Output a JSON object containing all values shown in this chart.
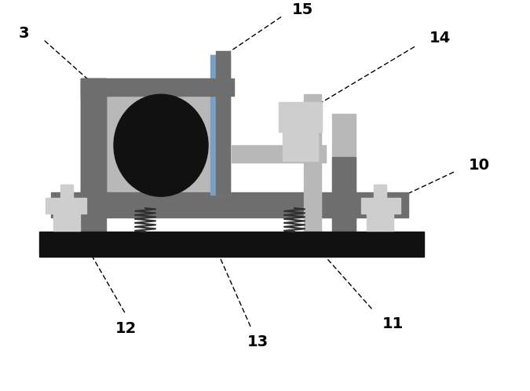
{
  "bg_color": "#ffffff",
  "gray_dark": "#6e6e6e",
  "gray_medium": "#909090",
  "gray_light": "#b8b8b8",
  "gray_lighter": "#cecece",
  "blue_color": "#7a9fc0",
  "black_color": "#111111",
  "figsize": [
    6.75,
    4.98
  ],
  "dpi": 100
}
